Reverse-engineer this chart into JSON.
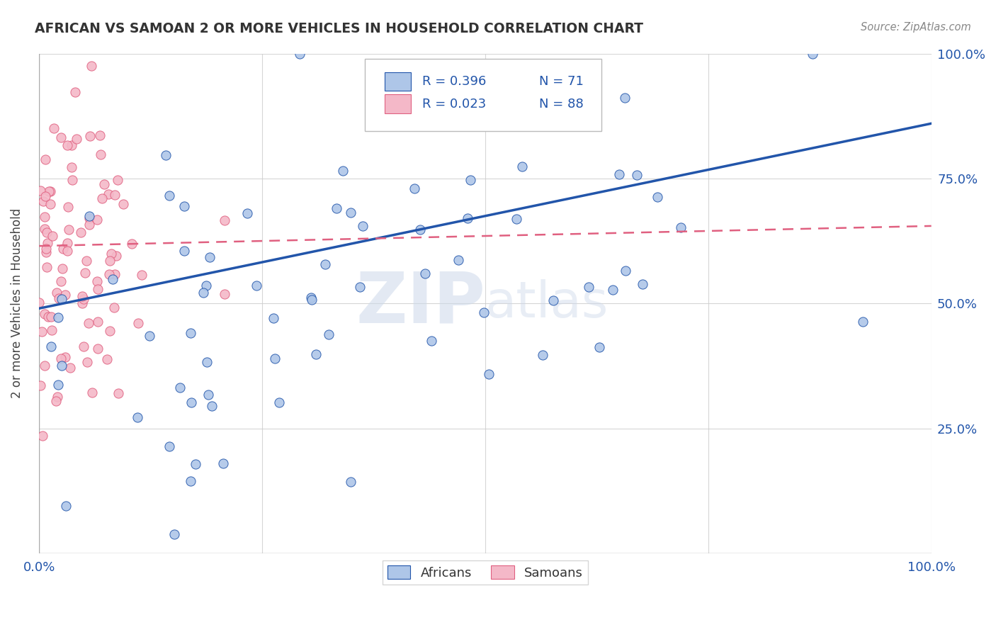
{
  "title": "AFRICAN VS SAMOAN 2 OR MORE VEHICLES IN HOUSEHOLD CORRELATION CHART",
  "source": "Source: ZipAtlas.com",
  "ylabel": "2 or more Vehicles in Household",
  "watermark_zip": "ZIP",
  "watermark_atlas": "atlas",
  "xlim": [
    0,
    1
  ],
  "ylim": [
    0,
    1
  ],
  "african_color": "#aec6e8",
  "samoan_color": "#f4b8c8",
  "african_line_color": "#2255aa",
  "samoan_line_color": "#e06080",
  "african_R": 0.396,
  "samoan_R": 0.023,
  "african_N": 71,
  "samoan_N": 88,
  "background_color": "#ffffff",
  "grid_color": "#cccccc",
  "blue_text": "#2255aa",
  "tick_label_color": "#2255aa",
  "title_color": "#333333",
  "source_color": "#888888",
  "legend_box_color": "#eeeeee",
  "african_line_y0": 0.49,
  "african_line_y1": 0.86,
  "samoan_line_y0": 0.615,
  "samoan_line_y1": 0.655
}
